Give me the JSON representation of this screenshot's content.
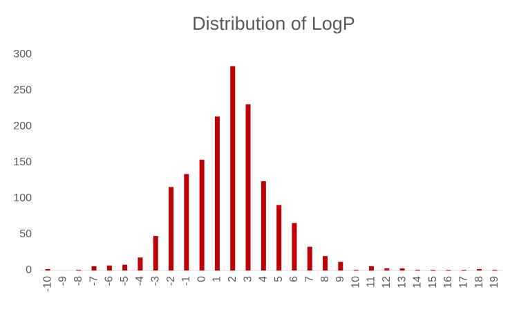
{
  "chart_data": {
    "type": "bar",
    "title": "Distribution of LogP",
    "categories": [
      "-10",
      "-9",
      "-8",
      "-7",
      "-6",
      "-5",
      "-4",
      "-3",
      "-2",
      "-1",
      "0",
      "1",
      "2",
      "3",
      "4",
      "5",
      "6",
      "7",
      "8",
      "9",
      "10",
      "11",
      "12",
      "13",
      "14",
      "15",
      "16",
      "17",
      "18",
      "19"
    ],
    "values": [
      2,
      0,
      1,
      6,
      7,
      8,
      18,
      48,
      116,
      134,
      154,
      214,
      284,
      231,
      124,
      91,
      66,
      33,
      20,
      12,
      1,
      6,
      3,
      3,
      1,
      1,
      1,
      1,
      2,
      1
    ],
    "color": "#c00000",
    "ylim": [
      0,
      300
    ],
    "yticks": [
      0,
      50,
      100,
      150,
      200,
      250,
      300
    ],
    "grid": false
  }
}
